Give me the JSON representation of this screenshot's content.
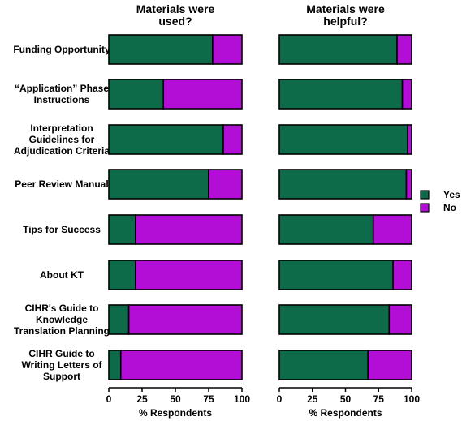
{
  "chart_data": {
    "type": "bar",
    "orientation": "horizontal",
    "stacked": true,
    "categories": [
      "Funding  Opportunity",
      "“Application” Phase Instructions",
      "Interpretation Guidelines for Adjudication Criteria",
      "Peer Review Manual",
      "Tips for Success",
      "About KT",
      "CIHR's Guide to Knowledge Translation Planning",
      "CIHR Guide to Writing Letters of Support"
    ],
    "category_lines": [
      [
        "Funding  Opportunity"
      ],
      [
        "“Application” Phase",
        "Instructions"
      ],
      [
        "Interpretation",
        "Guidelines for",
        "Adjudication Criteria"
      ],
      [
        "Peer Review Manual"
      ],
      [
        "Tips for Success"
      ],
      [
        "About KT"
      ],
      [
        "CIHR's Guide to",
        "Knowledge",
        "Translation Planning"
      ],
      [
        "CIHR Guide to",
        "Writing Letters of",
        "Support"
      ]
    ],
    "panels": [
      {
        "title_lines": [
          "Materials were",
          "used?"
        ],
        "xlabel": "% Respondents",
        "xlim": [
          0,
          100
        ],
        "ticks": [
          0,
          25,
          50,
          75,
          100
        ],
        "series": [
          {
            "name": "Yes",
            "values": [
              78,
              41,
              86,
              75,
              20,
              20,
              15,
              9
            ]
          },
          {
            "name": "No",
            "values": [
              22,
              59,
              14,
              25,
              80,
              80,
              85,
              91
            ]
          }
        ]
      },
      {
        "title_lines": [
          "Materials were",
          "helpful?"
        ],
        "xlabel": "% Respondents",
        "xlim": [
          0,
          100
        ],
        "ticks": [
          0,
          25,
          50,
          75,
          100
        ],
        "series": [
          {
            "name": "Yes",
            "values": [
              89,
              93,
              97,
              96,
              71,
              86,
              83,
              67
            ]
          },
          {
            "name": "No",
            "values": [
              11,
              7,
              3,
              4,
              29,
              14,
              17,
              33
            ]
          }
        ]
      }
    ],
    "legend": {
      "position": "right",
      "items": [
        {
          "name": "Yes",
          "color": "#0e6b4a"
        },
        {
          "name": "No",
          "color": "#b30ed6"
        }
      ]
    },
    "colors": {
      "yes": "#0e6b4a",
      "no": "#b30ed6",
      "outline": "#000000"
    },
    "grid": false
  }
}
